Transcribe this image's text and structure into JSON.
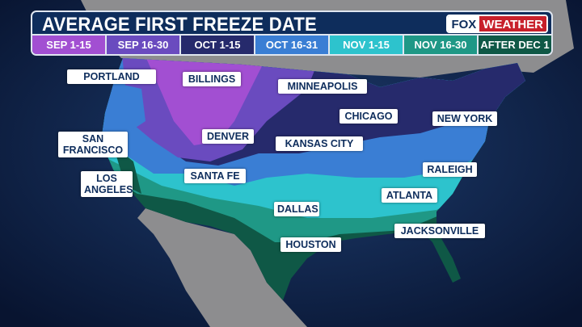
{
  "title": "AVERAGE FIRST FREEZE DATE",
  "logo": {
    "part1": "FOX",
    "part2": "WEATHER"
  },
  "legend": [
    {
      "label": "SEP 1-15",
      "color": "#a24fd2"
    },
    {
      "label": "SEP 16-30",
      "color": "#6a4bbf"
    },
    {
      "label": "OCT 1-15",
      "color": "#262a6c"
    },
    {
      "label": "OCT 16-31",
      "color": "#3a7ed4"
    },
    {
      "label": "NOV 1-15",
      "color": "#2dc3cd"
    },
    {
      "label": "NOV 16-30",
      "color": "#1f9886"
    },
    {
      "label": "AFTER DEC 1",
      "color": "#0f5846"
    }
  ],
  "cities": {
    "portland": "PORTLAND",
    "billings": "BILLINGS",
    "minneapolis": "MINNEAPOLIS",
    "chicago": "CHICAGO",
    "new_york": "NEW YORK",
    "san_francisco_1": "SAN",
    "san_francisco_2": "FRANCISCO",
    "denver": "DENVER",
    "kansas_city": "KANSAS CITY",
    "los_angeles_1": "LOS",
    "los_angeles_2": "ANGELES",
    "santa_fe": "SANTA FE",
    "raleigh": "RALEIGH",
    "atlanta": "ATLANTA",
    "dallas": "DALLAS",
    "jacksonville": "JACKSONVILLE",
    "houston": "HOUSTON"
  }
}
